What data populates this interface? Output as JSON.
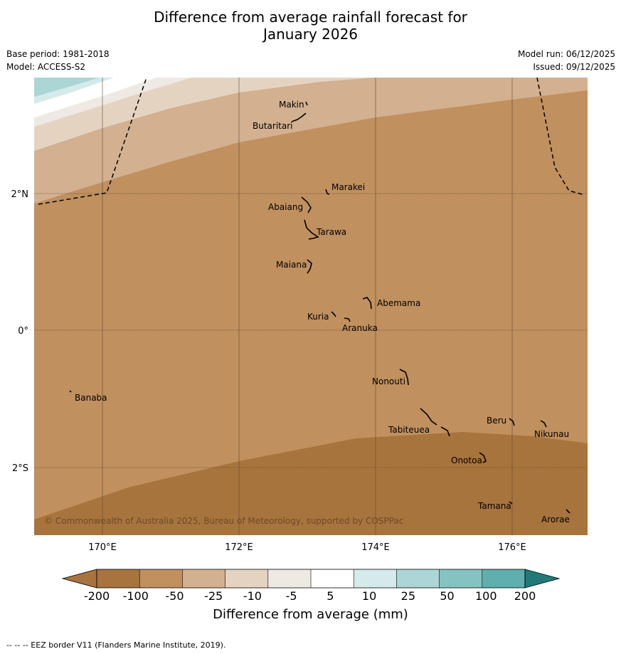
{
  "title_line1": "Difference from average rainfall forecast for",
  "title_line2": "January 2026",
  "meta": {
    "base_period": "Base period: 1981-2018",
    "model": "Model: ACCESS-S2",
    "model_run": "Model run: 06/12/2025",
    "issued": "Issued: 09/12/2025"
  },
  "map": {
    "lat_labels": [
      "2°N",
      "0°",
      "2°S"
    ],
    "lon_labels": [
      "170°E",
      "172°E",
      "174°E",
      "176°E"
    ],
    "copyright": "© Commonwealth of Australia 2025, Bureau of Meteorology, supported by COSPPac",
    "islands": [
      "Makin",
      "Butaritari",
      "Marakei",
      "Abaiang",
      "Tarawa",
      "Maiana",
      "Abemama",
      "Kuria",
      "Aranuka",
      "Nonouti",
      "Banaba",
      "Beru",
      "Tabiteuea",
      "Nikunau",
      "Onotoa",
      "Tamana",
      "Arorae"
    ]
  },
  "legend": {
    "title": "Difference from average (mm)",
    "ticks": [
      "-200",
      "-100",
      "-50",
      "-25",
      "-10",
      "-5",
      "5",
      "10",
      "25",
      "50",
      "100",
      "200"
    ],
    "colors": [
      "#a8743d",
      "#c0905f",
      "#d3b08f",
      "#e5d3c2",
      "#efe9e4",
      "#ffffff",
      "#d5eaea",
      "#acd5d5",
      "#84c3c2",
      "#5eafae",
      "#36999a",
      "#217978"
    ]
  },
  "footer": "--  --  -- EEZ border V11 (Flanders Marine Institute, 2019)."
}
